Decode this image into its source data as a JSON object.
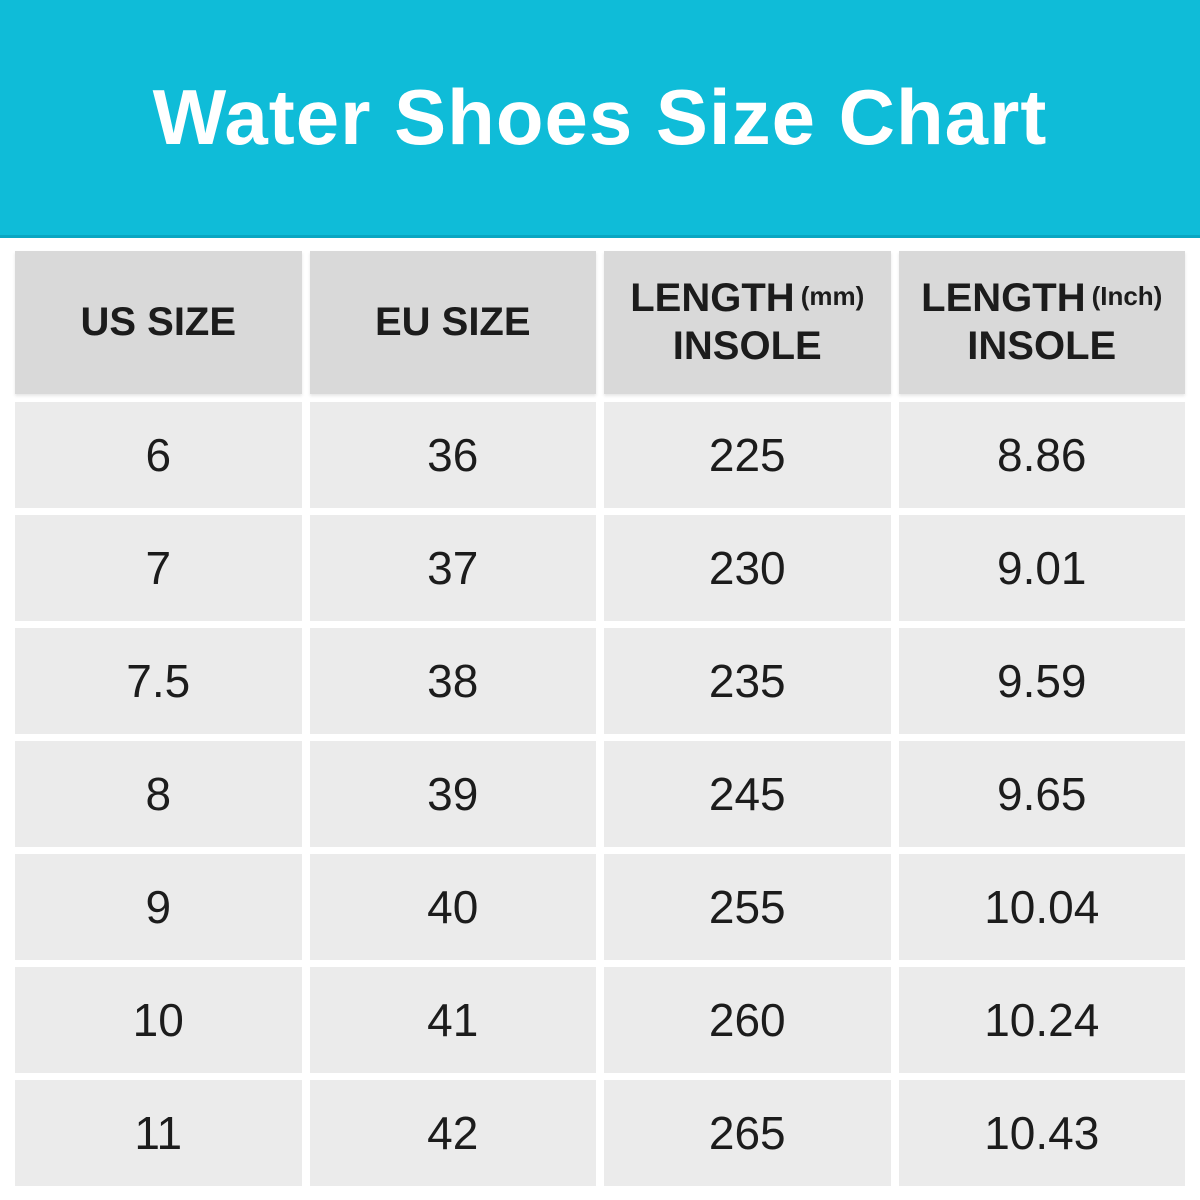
{
  "banner": {
    "title": "Water Shoes Size Chart"
  },
  "colors": {
    "banner_background": "#0fbcd8",
    "banner_border_bottom": "#0aa6c2",
    "banner_text": "#ffffff",
    "header_cell_background": "#d9d9d9",
    "data_cell_background": "#ebebeb",
    "text": "#1c1c1c",
    "page_background": "#ffffff"
  },
  "table": {
    "columns": [
      {
        "title": "US SIZE",
        "unit": "",
        "subtitle": ""
      },
      {
        "title": "EU SIZE",
        "unit": "",
        "subtitle": ""
      },
      {
        "title": "LENGTH",
        "unit": "(mm)",
        "subtitle": "INSOLE"
      },
      {
        "title": "LENGTH",
        "unit": "(Inch)",
        "subtitle": "INSOLE"
      }
    ],
    "rows": [
      {
        "us": "6",
        "eu": "36",
        "mm": "225",
        "inch": "8.86"
      },
      {
        "us": "7",
        "eu": "37",
        "mm": "230",
        "inch": "9.01"
      },
      {
        "us": "7.5",
        "eu": "38",
        "mm": "235",
        "inch": "9.59"
      },
      {
        "us": "8",
        "eu": "39",
        "mm": "245",
        "inch": "9.65"
      },
      {
        "us": "9",
        "eu": "40",
        "mm": "255",
        "inch": "10.04"
      },
      {
        "us": "10",
        "eu": "41",
        "mm": "260",
        "inch": "10.24"
      },
      {
        "us": "11",
        "eu": "42",
        "mm": "265",
        "inch": "10.43"
      }
    ]
  },
  "chart_data": {
    "type": "table",
    "title": "Water Shoes Size Chart",
    "columns": [
      "US SIZE",
      "EU SIZE",
      "LENGTH (mm) INSOLE",
      "LENGTH (Inch) INSOLE"
    ],
    "rows": [
      [
        "6",
        "36",
        "225",
        "8.86"
      ],
      [
        "7",
        "37",
        "230",
        "9.01"
      ],
      [
        "7.5",
        "38",
        "235",
        "9.59"
      ],
      [
        "8",
        "39",
        "245",
        "9.65"
      ],
      [
        "9",
        "40",
        "255",
        "10.04"
      ],
      [
        "10",
        "41",
        "260",
        "10.24"
      ],
      [
        "11",
        "42",
        "265",
        "10.43"
      ]
    ]
  }
}
